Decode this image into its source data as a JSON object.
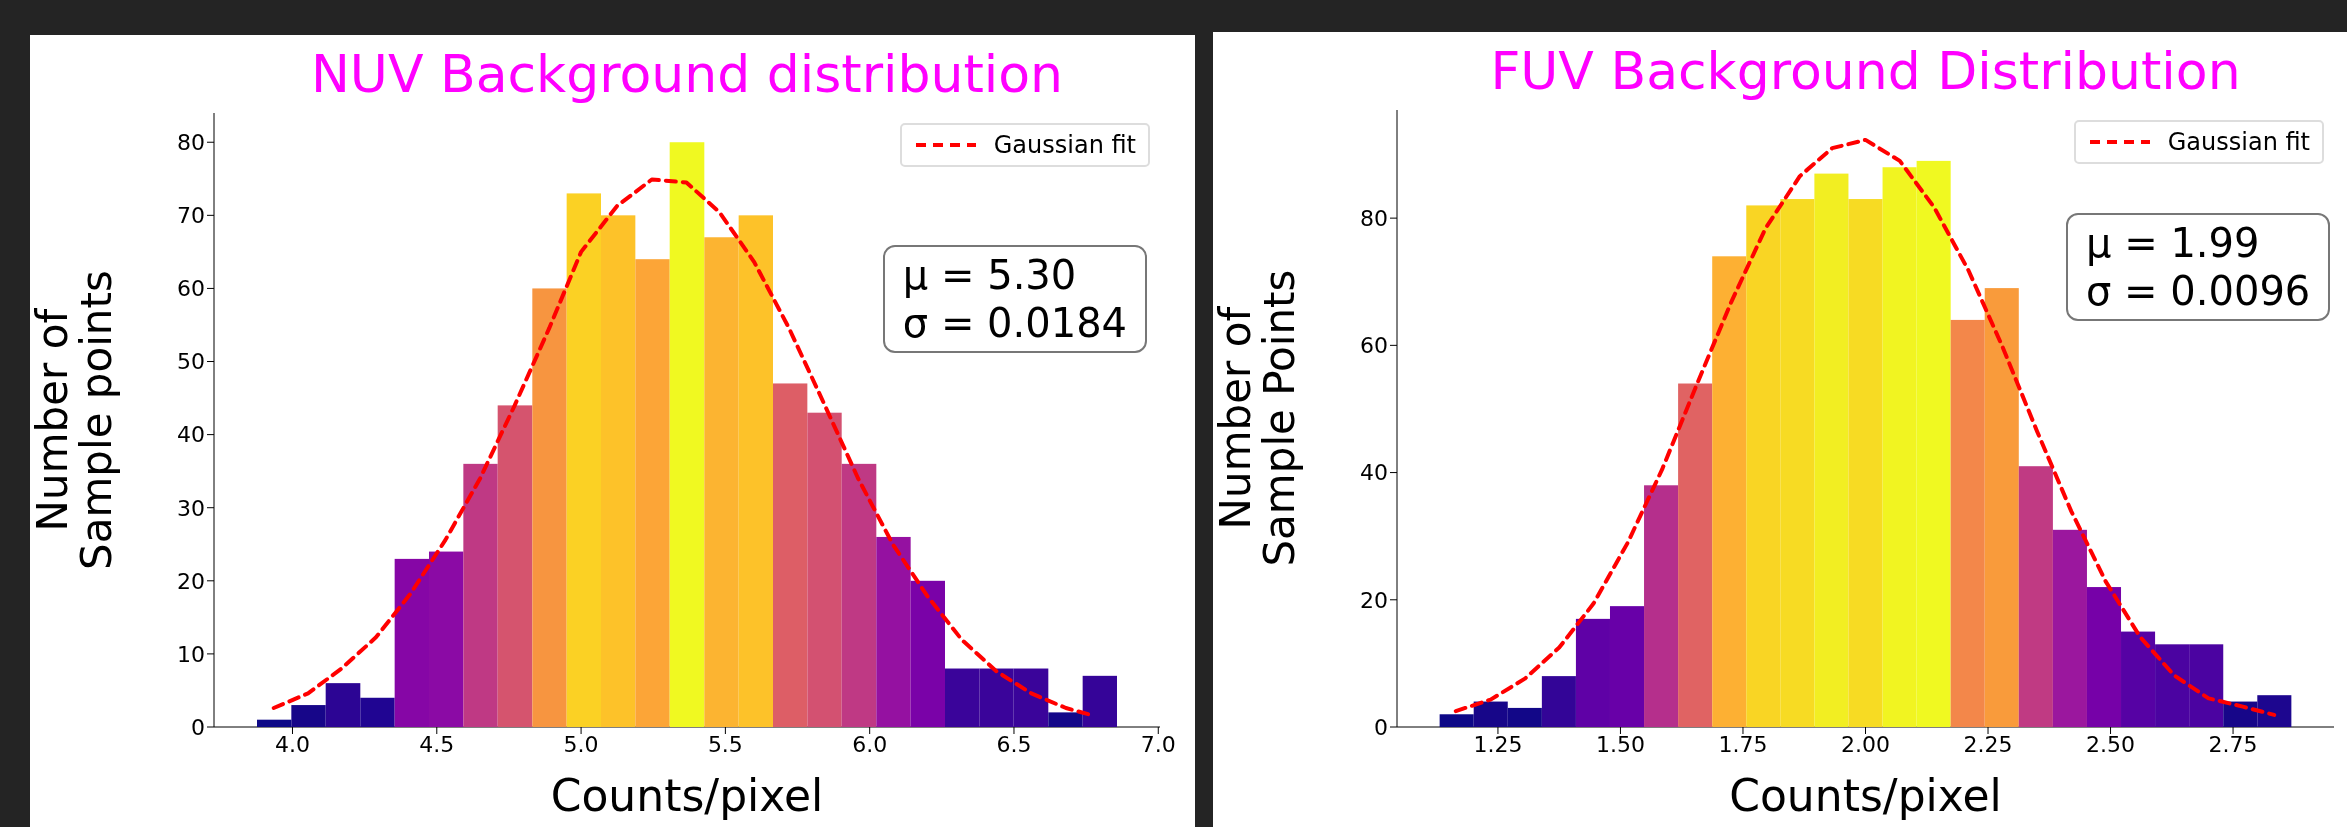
{
  "chart_data": [
    {
      "type": "histogram",
      "title": "NUV Background distribution",
      "xlabel": "Counts/pixel",
      "ylabel": "Number of\nSample points",
      "legend": "top right",
      "annotations": [
        "μ = 5.30\nσ = 0.0184"
      ],
      "xlim": [
        3.728,
        7.006
      ],
      "ylim": [
        0,
        84
      ],
      "xticks": [
        {
          "value": 4,
          "label": "4.0"
        },
        {
          "value": 4.5,
          "label": "4.5"
        },
        {
          "value": 5,
          "label": "5.0"
        },
        {
          "value": 5.5,
          "label": "5.5"
        },
        {
          "value": 6,
          "label": "6.0"
        },
        {
          "value": 6.5,
          "label": "6.5"
        },
        {
          "value": 7,
          "label": "7.0"
        }
      ],
      "yticks": [
        0,
        10,
        20,
        30,
        40,
        50,
        60,
        70,
        80
      ],
      "bins": [
        3.877,
        3.996,
        4.115,
        4.235,
        4.354,
        4.473,
        4.592,
        4.711,
        4.831,
        4.95,
        5.069,
        5.188,
        5.307,
        5.427,
        5.546,
        5.665,
        5.784,
        5.903,
        6.023,
        6.142,
        6.261,
        6.38,
        6.499,
        6.619,
        6.738,
        6.857
      ],
      "values": [
        1,
        3,
        6,
        4,
        23,
        24,
        36,
        44,
        60,
        73,
        70,
        64,
        80,
        67,
        70,
        47,
        43,
        36,
        26,
        20,
        8,
        8,
        8,
        2,
        7
      ],
      "colors": [
        "#0d0887",
        "#170689",
        "#2c0594",
        "#200592",
        "#8606a6",
        "#8b0aa5",
        "#bf3984",
        "#d5546e",
        "#f79540",
        "#fbd124",
        "#fdc229",
        "#fca537",
        "#f0f921",
        "#fcb431",
        "#fdc229",
        "#dd5e66",
        "#d35171",
        "#bf3984",
        "#9511a1",
        "#7a02a8",
        "#3a049a",
        "#3a049a",
        "#3a049a",
        "#130789",
        "#350498"
      ],
      "series": [
        {
          "type": "line",
          "name": "Gaussian fit",
          "color": "#ff0000",
          "line_style": "dashed",
          "x": [
            3.935,
            4.054,
            4.17,
            4.29,
            4.41,
            4.53,
            4.65,
            4.77,
            4.89,
            5.0,
            5.125,
            5.245,
            5.365,
            5.48,
            5.6,
            5.72,
            5.84,
            5.96,
            6.08,
            6.2,
            6.32,
            6.44,
            6.56,
            6.68,
            6.78
          ],
          "values": [
            2.6,
            4.6,
            8,
            12.3,
            18.3,
            25.6,
            34,
            44,
            54.6,
            65,
            71.3,
            74.9,
            74.5,
            70.4,
            63.6,
            54.6,
            44.4,
            34,
            25,
            17.9,
            11.9,
            7.6,
            4.6,
            2.6,
            1.5
          ]
        }
      ]
    },
    {
      "type": "histogram",
      "title": "FUV Background Distribution",
      "xlabel": "Counts/pixel",
      "ylabel": "Number of\nSample Points",
      "legend": "top right",
      "annotations": [
        "μ = 1.99\nσ = 0.0096"
      ],
      "xlim": [
        1.044,
        2.956
      ],
      "ylim": [
        0,
        97
      ],
      "xticks": [
        1.25,
        {
          "value": 1.5,
          "label": "1.50"
        },
        1.75,
        {
          "value": 2,
          "label": "2.00"
        },
        2.25,
        {
          "value": 2.5,
          "label": "2.50"
        },
        2.75
      ],
      "yticks": [
        0,
        20,
        40,
        60,
        80
      ],
      "bins": [
        1.131,
        1.2005,
        1.27,
        1.3396,
        1.4091,
        1.4786,
        1.5481,
        1.6176,
        1.6872,
        1.7567,
        1.8262,
        1.8957,
        1.9652,
        2.0348,
        2.1043,
        2.1738,
        2.2433,
        2.3128,
        2.3824,
        2.4519,
        2.5214,
        2.5909,
        2.6604,
        2.73,
        2.7995,
        2.869
      ],
      "values": [
        2,
        4,
        3,
        8,
        17,
        19,
        38,
        54,
        74,
        82,
        83,
        87,
        83,
        88,
        89,
        64,
        69,
        41,
        31,
        22,
        15,
        13,
        13,
        4,
        5
      ],
      "colors": [
        "#0d0887",
        "#170689",
        "#120788",
        "#330597",
        "#5f01a6",
        "#6800a8",
        "#b52f8c",
        "#e06363",
        "#fdb033",
        "#f9d524",
        "#f7db23",
        "#f2ee22",
        "#f7db23",
        "#f1f421",
        "#f0f921",
        "#f3874a",
        "#f99b3b",
        "#c03a83",
        "#9b179e",
        "#7601a8",
        "#5602a4",
        "#4b03a1",
        "#4b03a1",
        "#170689",
        "#1d068f"
      ],
      "series": [
        {
          "type": "line",
          "name": "Gaussian fit",
          "color": "#ff0000",
          "line_style": "dashed",
          "x": [
            1.164,
            1.235,
            1.305,
            1.375,
            1.445,
            1.515,
            1.585,
            1.655,
            1.726,
            1.796,
            1.866,
            1.932,
            2.0,
            2.07,
            2.14,
            2.21,
            2.28,
            2.35,
            2.42,
            2.49,
            2.56,
            2.63,
            2.7,
            2.77,
            2.834
          ],
          "values": [
            2.5,
            4.3,
            7.6,
            12.5,
            19.4,
            29,
            40.5,
            53.7,
            66.8,
            78.4,
            86.6,
            91,
            92.3,
            89,
            81.7,
            71.8,
            59.7,
            46.5,
            33.9,
            22.9,
            14.2,
            8.1,
            4.5,
            3.2,
            1.9
          ]
        }
      ]
    }
  ]
}
